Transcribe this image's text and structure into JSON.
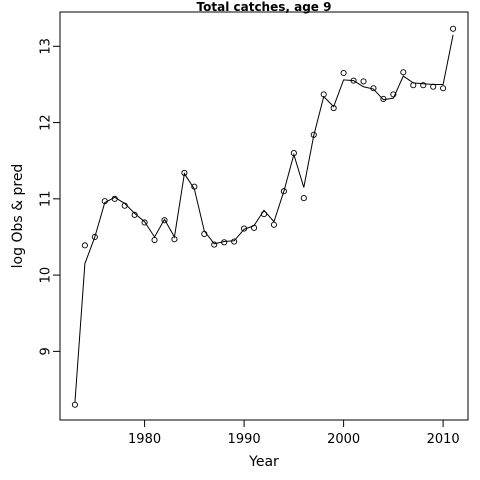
{
  "chart_data": {
    "type": "line",
    "title": "Total catches, age 9",
    "xlabel": "Year",
    "ylabel": "log Obs & pred",
    "xlim": [
      1971.5,
      2012.5
    ],
    "ylim": [
      8.1,
      13.45
    ],
    "x_ticks": [
      1980,
      1990,
      2000,
      2010
    ],
    "y_ticks": [
      9,
      10,
      11,
      12,
      13
    ],
    "grid": false,
    "x": [
      1973,
      1974,
      1975,
      1976,
      1977,
      1978,
      1979,
      1980,
      1981,
      1982,
      1983,
      1984,
      1985,
      1986,
      1987,
      1988,
      1989,
      1990,
      1991,
      1992,
      1993,
      1994,
      1995,
      1996,
      1997,
      1998,
      1999,
      2000,
      2001,
      2002,
      2003,
      2004,
      2005,
      2006,
      2007,
      2008,
      2009,
      2010,
      2011
    ],
    "series": [
      {
        "role": "observed",
        "style": "points",
        "values": [
          8.3,
          10.39,
          10.5,
          10.97,
          11.0,
          10.91,
          10.79,
          10.69,
          10.46,
          10.72,
          10.47,
          11.34,
          11.16,
          10.54,
          10.4,
          10.43,
          10.44,
          10.61,
          10.62,
          10.8,
          10.66,
          11.1,
          11.6,
          11.01,
          11.84,
          12.37,
          12.19,
          12.65,
          12.55,
          12.54,
          12.45,
          12.31,
          12.37,
          12.66,
          12.49,
          12.49,
          12.47,
          12.45,
          13.23
        ]
      },
      {
        "role": "predicted",
        "style": "line",
        "values": [
          8.33,
          10.15,
          10.5,
          10.95,
          11.02,
          10.94,
          10.81,
          10.7,
          10.5,
          10.73,
          10.5,
          11.33,
          11.13,
          10.58,
          10.41,
          10.44,
          10.45,
          10.6,
          10.65,
          10.85,
          10.7,
          11.1,
          11.58,
          11.15,
          11.83,
          12.34,
          12.21,
          12.56,
          12.55,
          12.47,
          12.44,
          12.3,
          12.32,
          12.61,
          12.52,
          12.51,
          12.5,
          12.5,
          13.15
        ]
      }
    ]
  }
}
